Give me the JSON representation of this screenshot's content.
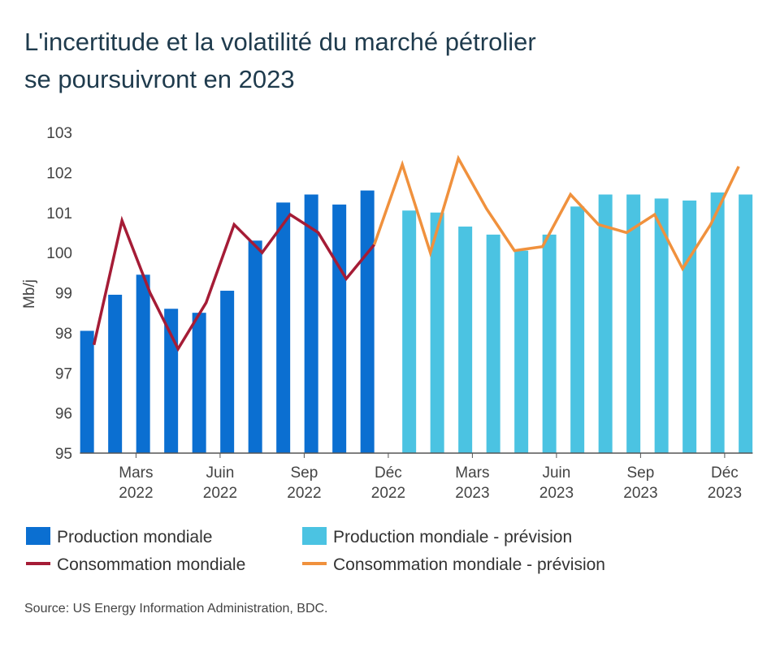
{
  "chart_data": {
    "type": "bar-line",
    "title": [
      "L'incertitude et la volatilité du marché pétrolier",
      "se poursuivront en 2023"
    ],
    "y_label": "Mb/j",
    "source": "Source: US Energy Information Administration, BDC.",
    "categories": [
      null,
      null,
      [
        "Mars",
        "2022"
      ],
      null,
      null,
      [
        "Juin",
        "2022"
      ],
      null,
      null,
      [
        "Sep",
        "2022"
      ],
      null,
      null,
      [
        "Déc",
        "2022"
      ],
      null,
      null,
      [
        "Mars",
        "2023"
      ],
      null,
      null,
      [
        "Juin",
        "2023"
      ],
      null,
      null,
      [
        "Sep",
        "2023"
      ],
      null,
      null,
      [
        "Déc",
        "2023"
      ]
    ],
    "ylim": [
      95,
      103
    ],
    "yticks": [
      95,
      96,
      97,
      98,
      99,
      100,
      101,
      102,
      103
    ],
    "series": [
      {
        "name": "Production mondiale",
        "kind": "bar",
        "color": "#0b6fd1",
        "values": [
          98.05,
          98.95,
          99.45,
          98.6,
          98.5,
          99.05,
          100.3,
          101.25,
          101.45,
          101.2,
          101.55,
          null,
          null,
          null,
          null,
          null,
          null,
          null,
          null,
          null,
          null,
          null,
          null,
          null
        ]
      },
      {
        "name": "Production mondiale - prévision",
        "kind": "bar",
        "color": "#4bc3e2",
        "values": [
          null,
          null,
          null,
          null,
          null,
          null,
          null,
          null,
          null,
          null,
          null,
          101.05,
          101.0,
          100.65,
          100.45,
          100.05,
          100.45,
          101.15,
          101.45,
          101.45,
          101.35,
          101.3,
          101.5,
          101.45
        ]
      },
      {
        "name": "Consommation mondiale",
        "kind": "line",
        "color": "#a51c36",
        "values": [
          97.7,
          100.8,
          99.0,
          97.6,
          98.75,
          100.7,
          100.0,
          100.95,
          100.5,
          99.35,
          100.2,
          null,
          null,
          null,
          null,
          null,
          null,
          null,
          null,
          null,
          null,
          null,
          null,
          null
        ]
      },
      {
        "name": "Consommation mondiale - prévision",
        "kind": "line",
        "color": "#f0913d",
        "values": [
          null,
          null,
          null,
          null,
          null,
          null,
          null,
          null,
          null,
          null,
          100.2,
          102.2,
          100.0,
          102.35,
          101.1,
          100.05,
          100.15,
          101.45,
          100.7,
          100.5,
          100.95,
          99.6,
          100.7,
          102.15
        ]
      }
    ]
  }
}
